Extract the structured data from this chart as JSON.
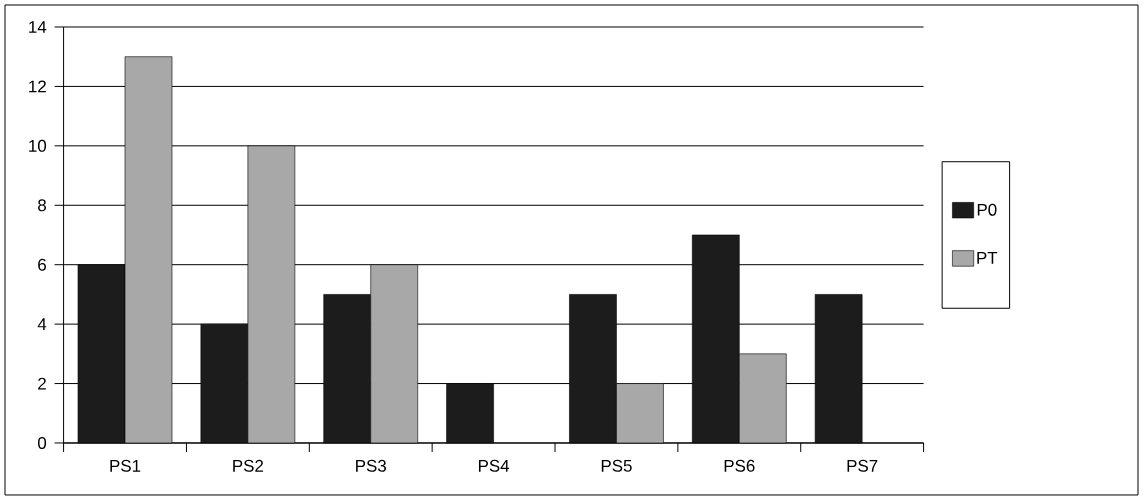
{
  "chart_data": {
    "type": "bar",
    "categories": [
      "PS1",
      "PS2",
      "PS3",
      "PS4",
      "PS5",
      "PS6",
      "PS7"
    ],
    "series": [
      {
        "name": "P0",
        "color": "#1c1c1c",
        "values": [
          6,
          4,
          5,
          2,
          5,
          7,
          5
        ]
      },
      {
        "name": "PT",
        "color": "#a8a8a8",
        "values": [
          13,
          10,
          6,
          null,
          2,
          3,
          null
        ]
      }
    ],
    "ylim": [
      0,
      14
    ],
    "yticks": [
      0,
      2,
      4,
      6,
      8,
      10,
      12,
      14
    ],
    "grid": "y",
    "legend": "right"
  }
}
